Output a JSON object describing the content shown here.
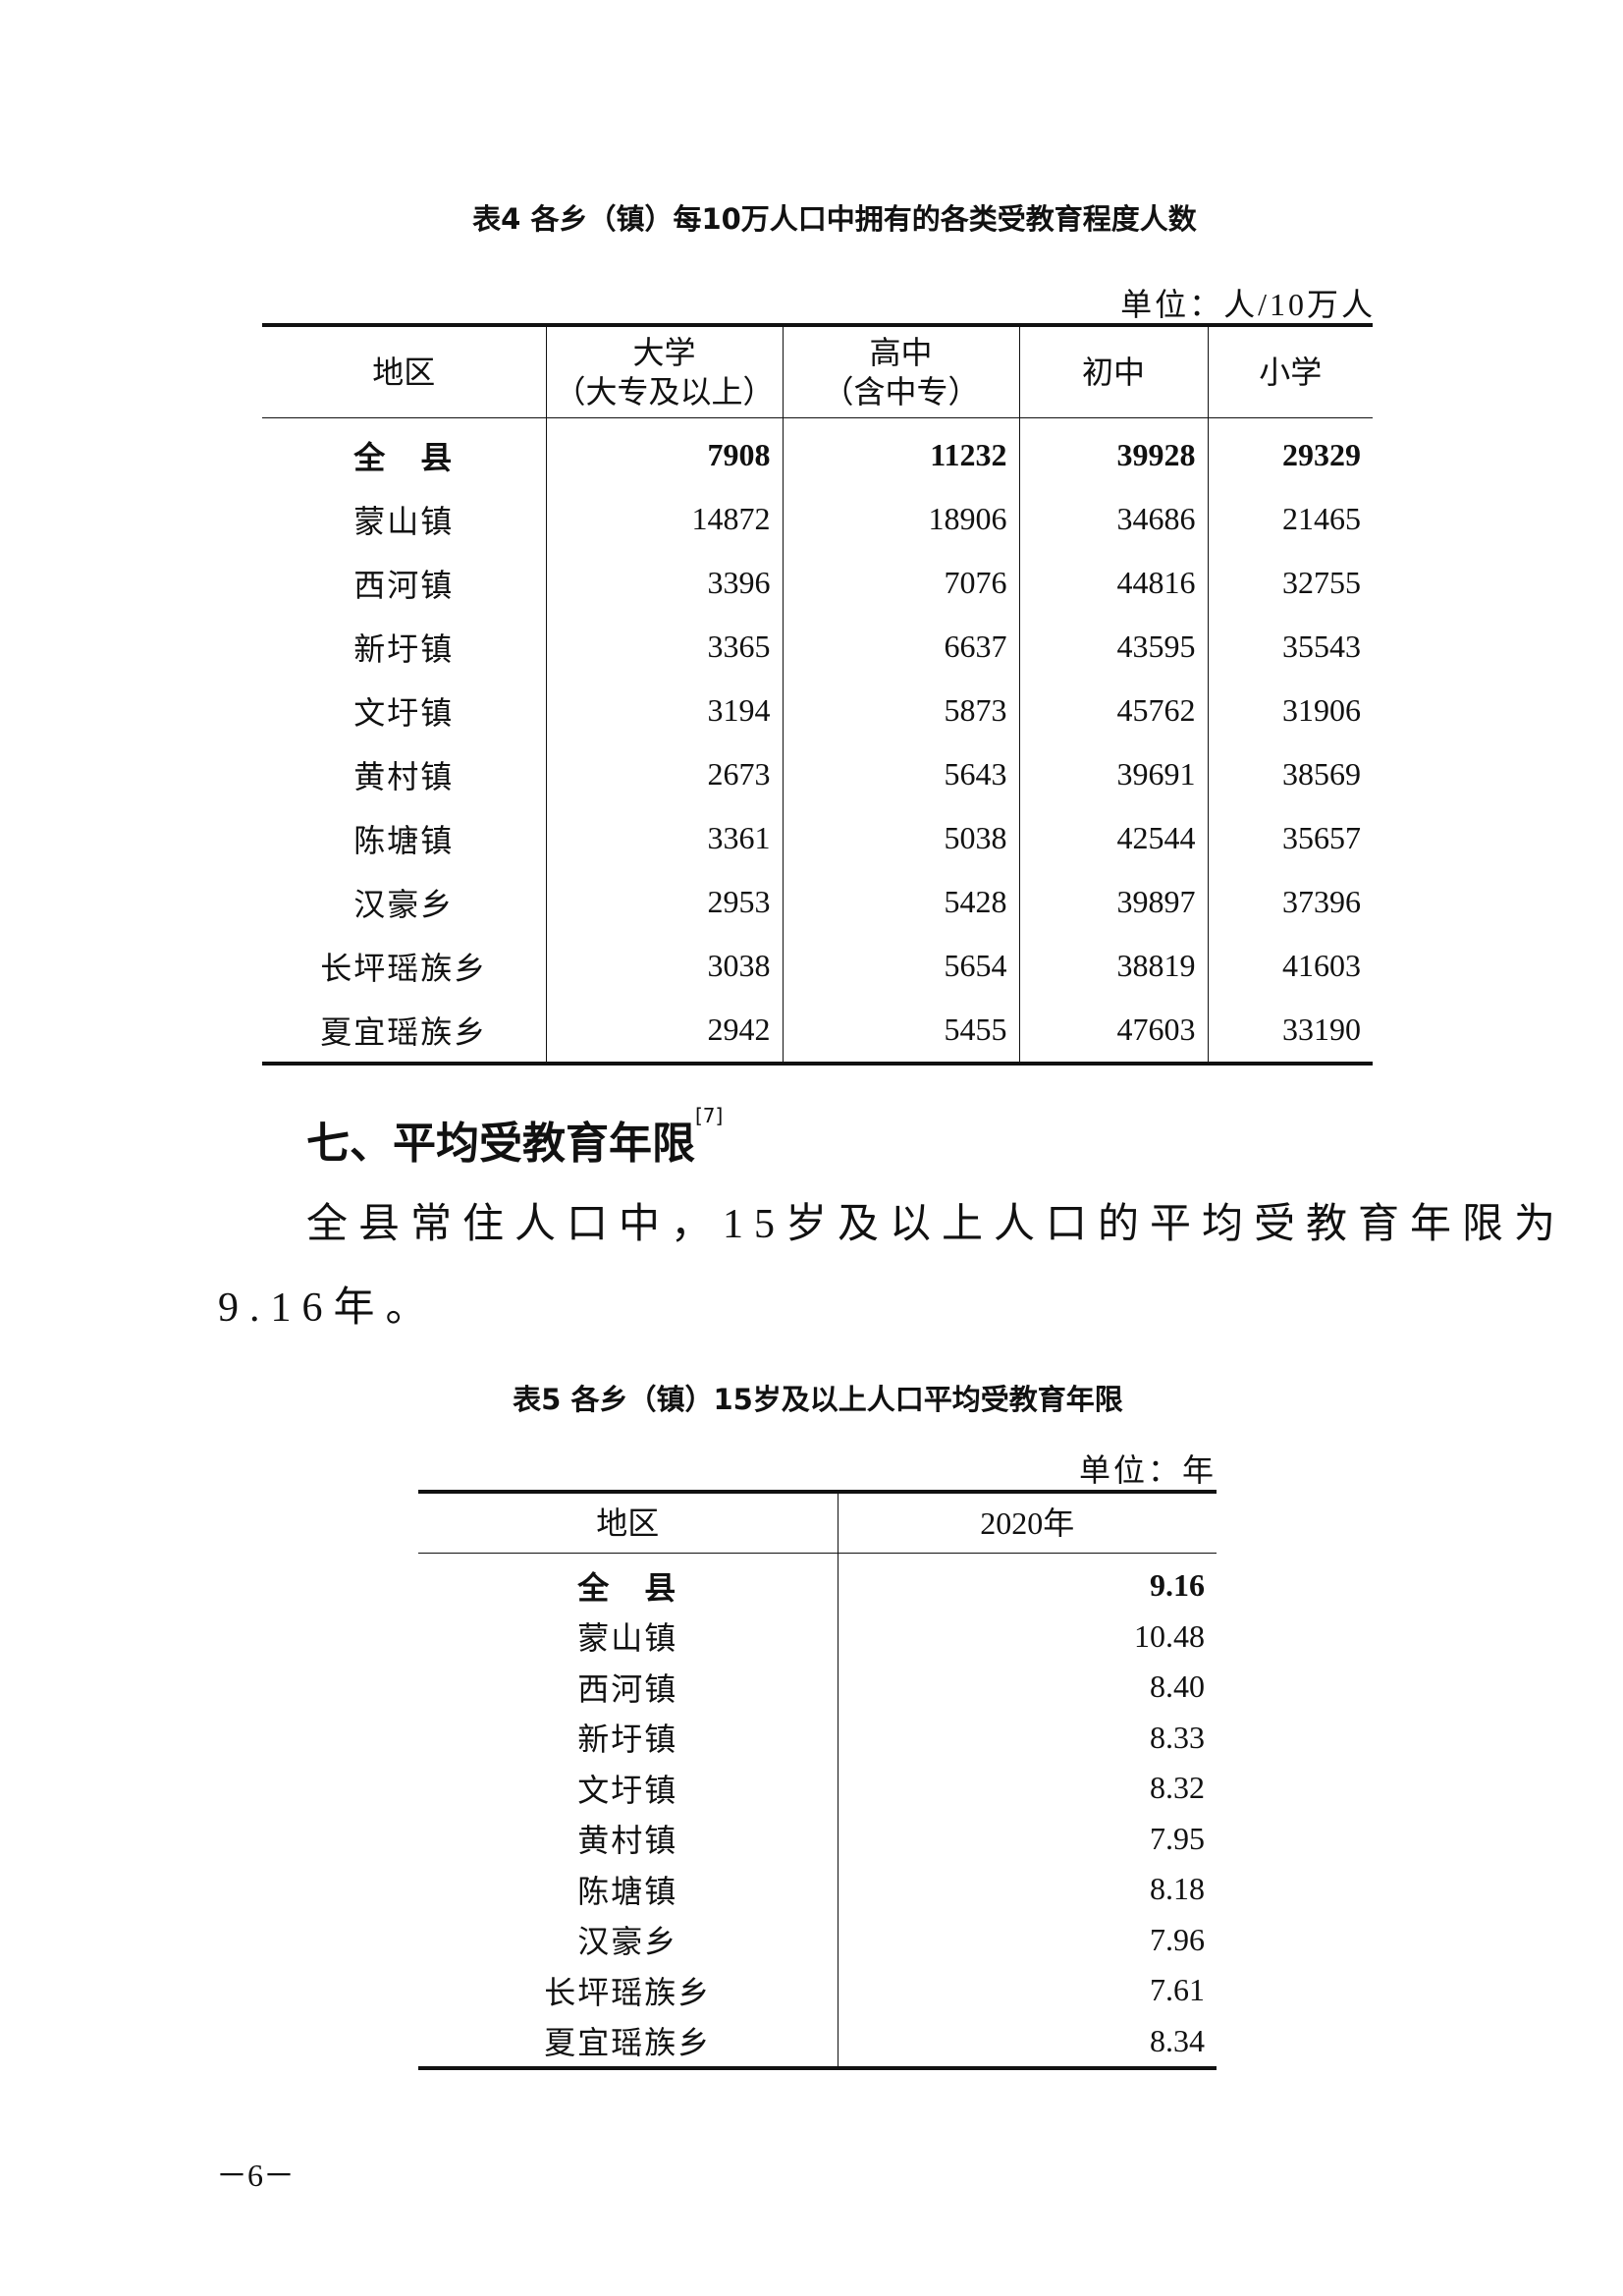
{
  "table4": {
    "title": "表4 各乡（镇）每10万人口中拥有的各类受教育程度人数",
    "unit": "单位：人/10万人",
    "headers": [
      "地区",
      "大学",
      "（大专及以上）",
      "高中",
      "（含中专）",
      "初中",
      "小学"
    ],
    "rows": [
      {
        "region": "全　县",
        "college": "7908",
        "high": "11232",
        "junior": "39928",
        "primary": "29329"
      },
      {
        "region": "蒙山镇",
        "college": "14872",
        "high": "18906",
        "junior": "34686",
        "primary": "21465"
      },
      {
        "region": "西河镇",
        "college": "3396",
        "high": "7076",
        "junior": "44816",
        "primary": "32755"
      },
      {
        "region": "新圩镇",
        "college": "3365",
        "high": "6637",
        "junior": "43595",
        "primary": "35543"
      },
      {
        "region": "文圩镇",
        "college": "3194",
        "high": "5873",
        "junior": "45762",
        "primary": "31906"
      },
      {
        "region": "黄村镇",
        "college": "2673",
        "high": "5643",
        "junior": "39691",
        "primary": "38569"
      },
      {
        "region": "陈塘镇",
        "college": "3361",
        "high": "5038",
        "junior": "42544",
        "primary": "35657"
      },
      {
        "region": "汉豪乡",
        "college": "2953",
        "high": "5428",
        "junior": "39897",
        "primary": "37396"
      },
      {
        "region": "长坪瑶族乡",
        "college": "3038",
        "high": "5654",
        "junior": "38819",
        "primary": "41603"
      },
      {
        "region": "夏宜瑶族乡",
        "college": "2942",
        "high": "5455",
        "junior": "47603",
        "primary": "33190"
      }
    ]
  },
  "section": {
    "heading": "七、平均受教育年限",
    "footnote": "[7]",
    "para_line1": "全县常住人口中，15岁及以上人口的平均受教育年限为",
    "para_line2": "9.16年。"
  },
  "table5": {
    "title": "表5 各乡（镇）15岁及以上人口平均受教育年限",
    "unit": "单位：年",
    "headers": [
      "地区",
      "2020年"
    ],
    "rows": [
      {
        "region": "全　县",
        "value": "9.16"
      },
      {
        "region": "蒙山镇",
        "value": "10.48"
      },
      {
        "region": "西河镇",
        "value": "8.40"
      },
      {
        "region": "新圩镇",
        "value": "8.33"
      },
      {
        "region": "文圩镇",
        "value": "8.32"
      },
      {
        "region": "黄村镇",
        "value": "7.95"
      },
      {
        "region": "陈塘镇",
        "value": "8.18"
      },
      {
        "region": "汉豪乡",
        "value": "7.96"
      },
      {
        "region": "长坪瑶族乡",
        "value": "7.61"
      },
      {
        "region": "夏宜瑶族乡",
        "value": "8.34"
      }
    ]
  },
  "page_number": "－6－"
}
